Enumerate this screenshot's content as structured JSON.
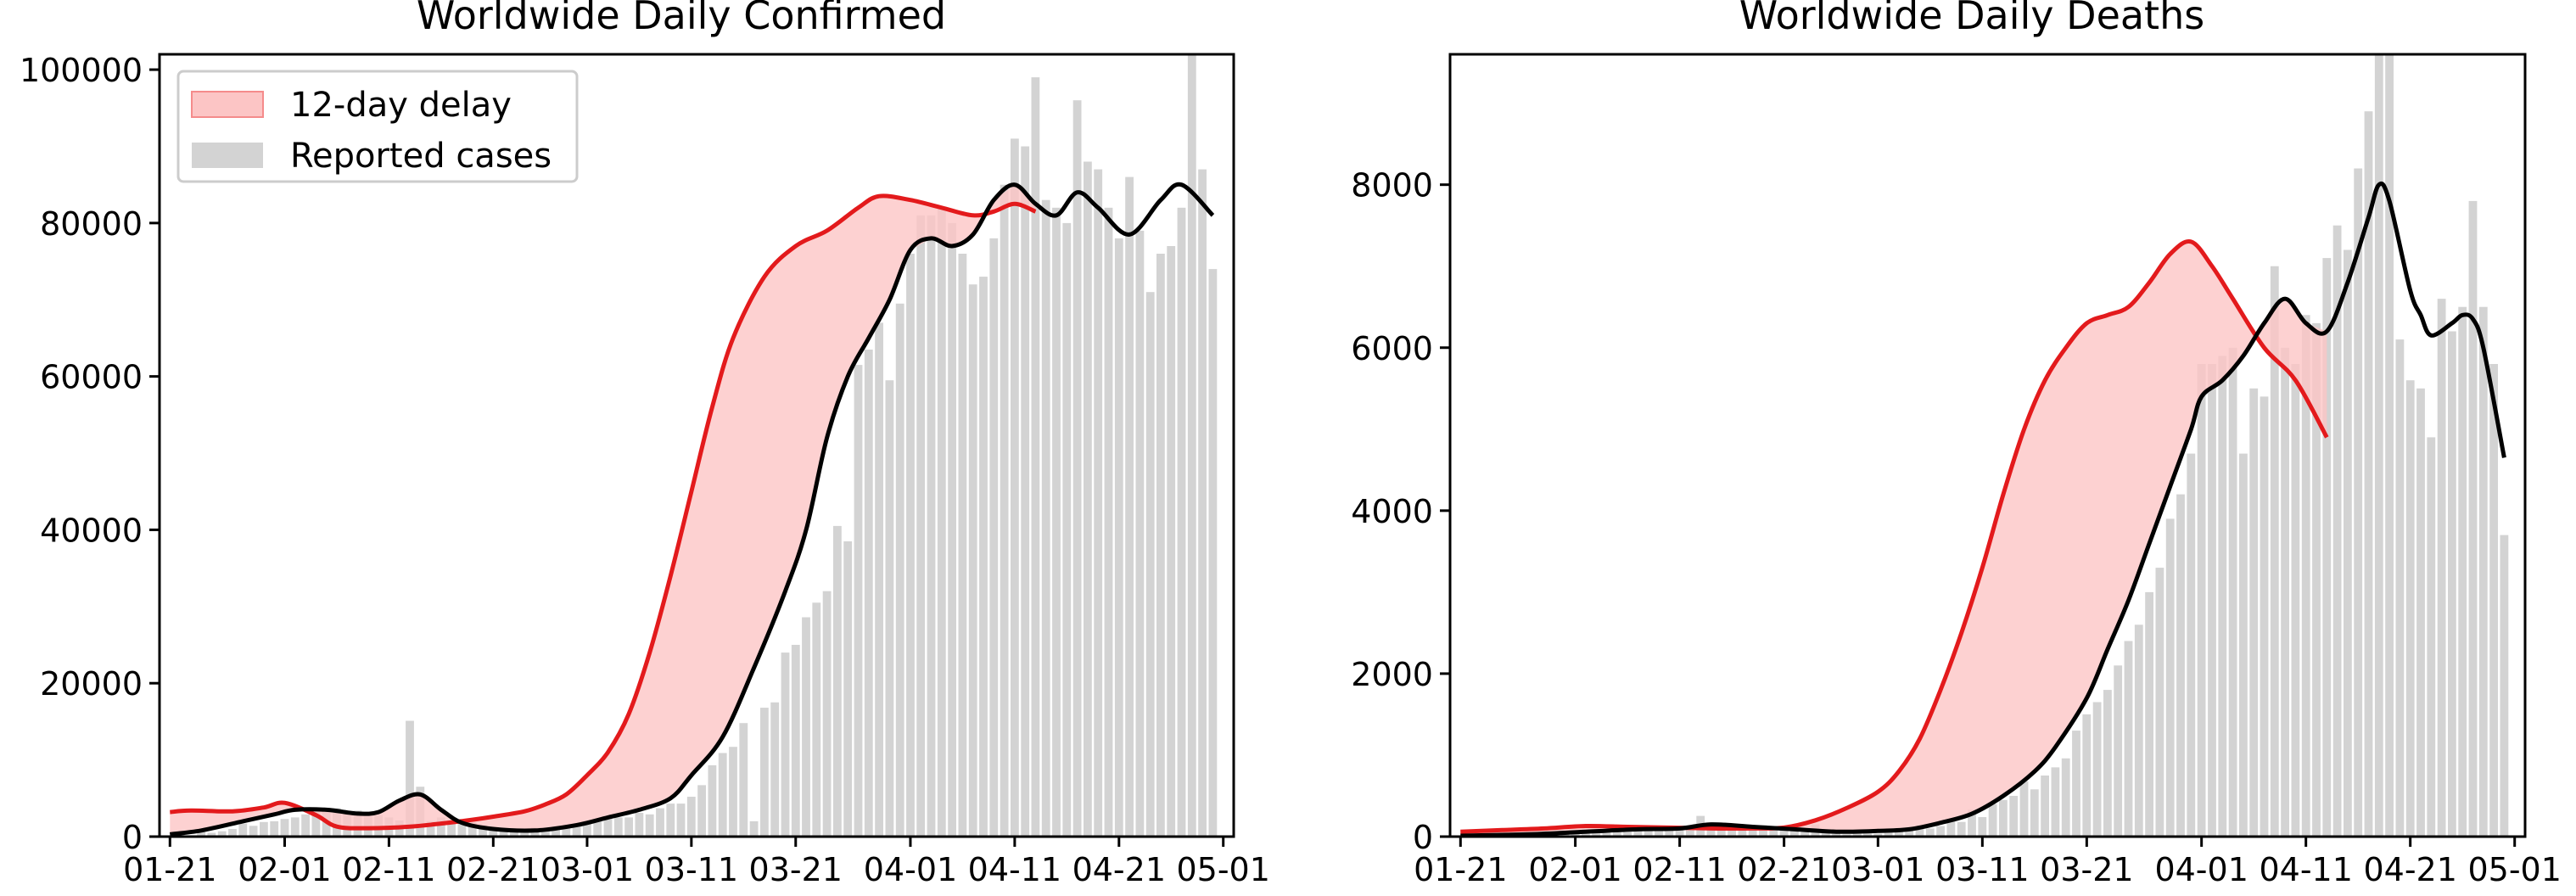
{
  "colors": {
    "bar": "#d3d3d3",
    "delay_fill": "#fcc5c5",
    "delay_line": "#e31a1c",
    "current_line": "#000000",
    "legend_fill": "#fcc5c5",
    "legend_edge": "#f58b8b"
  },
  "chart_data": [
    {
      "type": "bar",
      "title": "Worldwide Daily Confirmed",
      "xlabel": "",
      "ylabel": "",
      "x_ticks": [
        "01-21",
        "02-01",
        "02-11",
        "02-21",
        "03-01",
        "03-11",
        "03-21",
        "04-01",
        "04-11",
        "04-21",
        "05-01"
      ],
      "y_ticks": [
        "0",
        "20000",
        "40000",
        "60000",
        "80000",
        "100000"
      ],
      "x_start": "2020-01-20",
      "x_end": "2020-05-02",
      "ylim": [
        0,
        102000
      ],
      "legend": {
        "position": "top-left",
        "entries": [
          {
            "label": "12-day delay",
            "swatch": "delay_fill"
          },
          {
            "label": "Reported cases",
            "swatch": "bar"
          }
        ]
      },
      "bars": {
        "start_date": "2020-01-22",
        "values": [
          580,
          100,
          600,
          500,
          700,
          1000,
          1700,
          1400,
          1900,
          2000,
          2300,
          2500,
          2900,
          3800,
          3500,
          3700,
          3200,
          3400,
          2600,
          2800,
          2500,
          2100,
          15100,
          6500,
          2000,
          2500,
          2200,
          2000,
          1900,
          1500,
          800,
          900,
          900,
          500,
          1200,
          1000,
          1200,
          1400,
          1700,
          1900,
          2100,
          2500,
          2500,
          2500,
          3100,
          2900,
          3700,
          4300,
          4300,
          5200,
          6700,
          9300,
          10900,
          11700,
          14800,
          2000,
          16800,
          17500,
          24000,
          25000,
          28600,
          30500,
          32000,
          40500,
          38500,
          61500,
          63500,
          67000,
          59500,
          69500,
          76000,
          81000,
          81000,
          82000,
          80000,
          76000,
          72000,
          73000,
          78000,
          85000,
          91000,
          90000,
          99000,
          83000,
          82000,
          80000,
          96000,
          88000,
          87000,
          82000,
          78000,
          86000,
          79000,
          71000,
          76000,
          77000,
          82000,
          102000,
          87000,
          74000
        ]
      },
      "delay_series": {
        "name": "12-day delay",
        "start_date": "2020-01-21",
        "end_date": "2020-04-13",
        "points": [
          [
            "2020-01-21",
            3200
          ],
          [
            "2020-01-23",
            3400
          ],
          [
            "2020-01-27",
            3300
          ],
          [
            "2020-01-30",
            3800
          ],
          [
            "2020-02-01",
            4400
          ],
          [
            "2020-02-04",
            2800
          ],
          [
            "2020-02-06",
            1300
          ],
          [
            "2020-02-09",
            1100
          ],
          [
            "2020-02-13",
            1300
          ],
          [
            "2020-02-16",
            1700
          ],
          [
            "2020-02-19",
            2200
          ],
          [
            "2020-02-21",
            2600
          ],
          [
            "2020-02-24",
            3300
          ],
          [
            "2020-02-26",
            4200
          ],
          [
            "2020-02-28",
            5500
          ],
          [
            "2020-03-01",
            8000
          ],
          [
            "2020-03-03",
            11000
          ],
          [
            "2020-03-05",
            16000
          ],
          [
            "2020-03-07",
            24000
          ],
          [
            "2020-03-09",
            34000
          ],
          [
            "2020-03-11",
            45000
          ],
          [
            "2020-03-13",
            56000
          ],
          [
            "2020-03-15",
            65000
          ],
          [
            "2020-03-18",
            73000
          ],
          [
            "2020-03-21",
            77000
          ],
          [
            "2020-03-24",
            79000
          ],
          [
            "2020-03-27",
            82000
          ],
          [
            "2020-03-29",
            83500
          ],
          [
            "2020-04-01",
            83000
          ],
          [
            "2020-04-04",
            82000
          ],
          [
            "2020-04-07",
            81000
          ],
          [
            "2020-04-09",
            81500
          ],
          [
            "2020-04-11",
            82500
          ],
          [
            "2020-04-13",
            81500
          ]
        ]
      },
      "current_series": {
        "name": "",
        "start_date": "2020-01-21",
        "end_date": "2020-04-30",
        "points": [
          [
            "2020-01-21",
            300
          ],
          [
            "2020-01-24",
            800
          ],
          [
            "2020-01-28",
            2000
          ],
          [
            "2020-01-31",
            2900
          ],
          [
            "2020-02-02",
            3500
          ],
          [
            "2020-02-05",
            3500
          ],
          [
            "2020-02-08",
            3000
          ],
          [
            "2020-02-10",
            3200
          ],
          [
            "2020-02-12",
            4700
          ],
          [
            "2020-02-14",
            5500
          ],
          [
            "2020-02-16",
            3500
          ],
          [
            "2020-02-18",
            1800
          ],
          [
            "2020-02-21",
            1000
          ],
          [
            "2020-02-25",
            800
          ],
          [
            "2020-02-29",
            1500
          ],
          [
            "2020-03-03",
            2500
          ],
          [
            "2020-03-06",
            3500
          ],
          [
            "2020-03-09",
            5000
          ],
          [
            "2020-03-11",
            8000
          ],
          [
            "2020-03-14",
            13000
          ],
          [
            "2020-03-17",
            22000
          ],
          [
            "2020-03-20",
            32000
          ],
          [
            "2020-03-22",
            40000
          ],
          [
            "2020-03-24",
            52000
          ],
          [
            "2020-03-26",
            60000
          ],
          [
            "2020-03-28",
            65000
          ],
          [
            "2020-03-30",
            70000
          ],
          [
            "2020-04-01",
            76500
          ],
          [
            "2020-04-03",
            78000
          ],
          [
            "2020-04-05",
            77000
          ],
          [
            "2020-04-07",
            78500
          ],
          [
            "2020-04-09",
            83000
          ],
          [
            "2020-04-11",
            85000
          ],
          [
            "2020-04-13",
            82500
          ],
          [
            "2020-04-15",
            81000
          ],
          [
            "2020-04-17",
            84000
          ],
          [
            "2020-04-19",
            82000
          ],
          [
            "2020-04-22",
            78500
          ],
          [
            "2020-04-25",
            83000
          ],
          [
            "2020-04-27",
            85000
          ],
          [
            "2020-04-30",
            81000
          ]
        ]
      }
    },
    {
      "type": "bar",
      "title": "Worldwide Daily Deaths",
      "xlabel": "",
      "ylabel": "",
      "x_ticks": [
        "01-21",
        "02-01",
        "02-11",
        "02-21",
        "03-01",
        "03-11",
        "03-21",
        "04-01",
        "04-11",
        "04-21",
        "05-01"
      ],
      "y_ticks": [
        "0",
        "2000",
        "4000",
        "6000",
        "8000"
      ],
      "x_start": "2020-01-20",
      "x_end": "2020-05-02",
      "ylim": [
        0,
        9600
      ],
      "bars": {
        "start_date": "2020-01-22",
        "values": [
          17,
          1,
          8,
          16,
          14,
          26,
          49,
          2,
          38,
          42,
          46,
          45,
          57,
          64,
          66,
          73,
          73,
          86,
          89,
          97,
          108,
          97,
          254,
          121,
          143,
          142,
          106,
          98,
          139,
          115,
          118,
          109,
          97,
          150,
          71,
          52,
          29,
          44,
          37,
          35,
          58,
          67,
          81,
          94,
          100,
          130,
          220,
          180,
          330,
          240,
          400,
          450,
          500,
          680,
          580,
          750,
          850,
          960,
          1300,
          1500,
          1650,
          1800,
          2100,
          2400,
          2600,
          3000,
          3300,
          3900,
          4200,
          4700,
          5800,
          5800,
          5900,
          6000,
          4700,
          5500,
          5400,
          7000,
          6000,
          5800,
          6400,
          6300,
          7100,
          7500,
          7200,
          8200,
          8900,
          9600,
          9600,
          6100,
          5600,
          5500,
          4900,
          6600,
          6200,
          6500,
          7800,
          6500,
          5800,
          3700
        ]
      },
      "delay_series": {
        "name": "12-day delay",
        "start_date": "2020-01-21",
        "end_date": "2020-04-13",
        "points": [
          [
            "2020-01-21",
            60
          ],
          [
            "2020-01-25",
            80
          ],
          [
            "2020-01-29",
            100
          ],
          [
            "2020-02-02",
            130
          ],
          [
            "2020-02-06",
            120
          ],
          [
            "2020-02-10",
            110
          ],
          [
            "2020-02-14",
            100
          ],
          [
            "2020-02-18",
            100
          ],
          [
            "2020-02-21",
            110
          ],
          [
            "2020-02-24",
            200
          ],
          [
            "2020-02-27",
            350
          ],
          [
            "2020-03-01",
            550
          ],
          [
            "2020-03-03",
            800
          ],
          [
            "2020-03-05",
            1200
          ],
          [
            "2020-03-07",
            1800
          ],
          [
            "2020-03-09",
            2500
          ],
          [
            "2020-03-11",
            3300
          ],
          [
            "2020-03-13",
            4200
          ],
          [
            "2020-03-15",
            5000
          ],
          [
            "2020-03-17",
            5600
          ],
          [
            "2020-03-19",
            6000
          ],
          [
            "2020-03-21",
            6300
          ],
          [
            "2020-03-23",
            6400
          ],
          [
            "2020-03-25",
            6500
          ],
          [
            "2020-03-27",
            6800
          ],
          [
            "2020-03-29",
            7150
          ],
          [
            "2020-03-31",
            7300
          ],
          [
            "2020-04-02",
            7000
          ],
          [
            "2020-04-04",
            6600
          ],
          [
            "2020-04-07",
            6000
          ],
          [
            "2020-04-10",
            5600
          ],
          [
            "2020-04-13",
            4900
          ]
        ]
      },
      "current_series": {
        "name": "",
        "start_date": "2020-01-21",
        "end_date": "2020-04-30",
        "points": [
          [
            "2020-01-21",
            10
          ],
          [
            "2020-01-28",
            30
          ],
          [
            "2020-02-02",
            60
          ],
          [
            "2020-02-07",
            90
          ],
          [
            "2020-02-11",
            100
          ],
          [
            "2020-02-14",
            150
          ],
          [
            "2020-02-18",
            120
          ],
          [
            "2020-02-22",
            90
          ],
          [
            "2020-02-26",
            60
          ],
          [
            "2020-03-01",
            70
          ],
          [
            "2020-03-04",
            90
          ],
          [
            "2020-03-07",
            170
          ],
          [
            "2020-03-10",
            280
          ],
          [
            "2020-03-13",
            500
          ],
          [
            "2020-03-16",
            800
          ],
          [
            "2020-03-18",
            1100
          ],
          [
            "2020-03-21",
            1700
          ],
          [
            "2020-03-23",
            2300
          ],
          [
            "2020-03-25",
            2900
          ],
          [
            "2020-03-27",
            3600
          ],
          [
            "2020-03-29",
            4300
          ],
          [
            "2020-03-31",
            5000
          ],
          [
            "2020-04-01",
            5400
          ],
          [
            "2020-04-03",
            5600
          ],
          [
            "2020-04-05",
            5900
          ],
          [
            "2020-04-07",
            6300
          ],
          [
            "2020-04-09",
            6600
          ],
          [
            "2020-04-11",
            6300
          ],
          [
            "2020-04-13",
            6200
          ],
          [
            "2020-04-15",
            6800
          ],
          [
            "2020-04-17",
            7600
          ],
          [
            "2020-04-18",
            8000
          ],
          [
            "2020-04-19",
            7800
          ],
          [
            "2020-04-21",
            6700
          ],
          [
            "2020-04-22",
            6400
          ],
          [
            "2020-04-23",
            6150
          ],
          [
            "2020-04-25",
            6300
          ],
          [
            "2020-04-26",
            6400
          ],
          [
            "2020-04-27",
            6350
          ],
          [
            "2020-04-28",
            6000
          ],
          [
            "2020-04-30",
            4650
          ]
        ]
      }
    }
  ]
}
